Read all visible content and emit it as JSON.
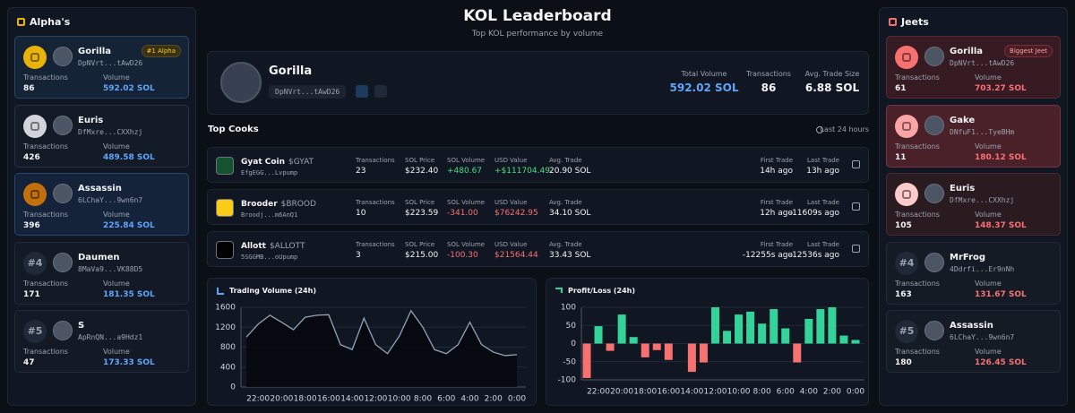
{
  "header": {
    "title": "KOL Leaderboard",
    "subtitle": "Top KOL performance by volume"
  },
  "alphas": {
    "title": "Alpha's",
    "labels": {
      "transactions": "Transactions",
      "volume": "Volume"
    },
    "entries": [
      {
        "name": "Gorilla",
        "address": "DpNVrt...tAwD26",
        "transactions": "86",
        "volume": "592.02 SOL",
        "badge": "#1 Alpha"
      },
      {
        "name": "Euris",
        "address": "DfMxre...CXXhzj",
        "transactions": "426",
        "volume": "489.58 SOL"
      },
      {
        "name": "Assassin",
        "address": "6LChaY...9wn6n7",
        "transactions": "396",
        "volume": "225.84 SOL"
      },
      {
        "rank": "#4",
        "name": "Daumen",
        "address": "8MaVa9...VK88D5",
        "transactions": "171",
        "volume": "181.35 SOL"
      },
      {
        "rank": "#5",
        "name": "S",
        "address": "ApRnQN...a9Hdz1",
        "transactions": "47",
        "volume": "173.33 SOL"
      }
    ]
  },
  "profile": {
    "name": "Gorilla",
    "address": "DpNVrt...tAwD26",
    "stats": [
      {
        "label": "Total Volume",
        "value": "592.02 SOL"
      },
      {
        "label": "Transactions",
        "value": "86"
      },
      {
        "label": "Avg. Trade Size",
        "value": "6.88 SOL"
      }
    ]
  },
  "top_cooks": {
    "title": "Top Cooks",
    "period": "Last 24 hours",
    "columns": [
      "Transactions",
      "SOL Price",
      "SOL Volume",
      "USD Value",
      "Avg. Trade",
      "First Trade",
      "Last Trade"
    ],
    "rows": [
      {
        "name": "Gyat Coin",
        "symbol": "$GYAT",
        "address": "EfgEGG...Lvpump",
        "pnl_color": "#4ade80",
        "cells": [
          "23",
          "$232.40",
          "+480.67",
          "+$111704.49",
          "20.90 SOL",
          "14h ago",
          "13h ago"
        ]
      },
      {
        "name": "Brooder",
        "symbol": "$BROOD",
        "address": "Broodj...m6AnQ1",
        "pnl_color": "#f87171",
        "cells": [
          "10",
          "$223.59",
          "-341.00",
          "$76242.95",
          "34.10 SOL",
          "12h ago",
          "-11609s ago"
        ]
      },
      {
        "name": "Allott",
        "symbol": "$ALLOTT",
        "address": "5SGGMB...oUpump",
        "pnl_color": "#f87171",
        "cells": [
          "3",
          "$215.00",
          "-100.30",
          "$21564.44",
          "33.43 SOL",
          "-12255s ago",
          "-12536s ago"
        ]
      }
    ]
  },
  "volume_chart": {
    "type": "line",
    "title": "Trading Volume (24h)",
    "color": "#94a3b8",
    "categories": [
      null,
      "22:00",
      null,
      "20:00",
      null,
      "18:00",
      null,
      "16:00",
      null,
      "14:00",
      null,
      "12:00",
      null,
      "10:00",
      null,
      "8:00",
      null,
      "6:00",
      null,
      "4:00",
      null,
      "2:00",
      null,
      "0:00"
    ],
    "values": [
      1000,
      1260,
      1440,
      1300,
      1150,
      1400,
      1440,
      1450,
      850,
      750,
      1380,
      850,
      670,
      1020,
      1530,
      1200,
      750,
      670,
      850,
      1300,
      850,
      700,
      630,
      650
    ],
    "ylim": [
      0,
      1600
    ],
    "yticks": [
      0,
      400,
      800,
      1200,
      1600
    ],
    "grid": true
  },
  "pnl_chart": {
    "type": "bar",
    "title": "Profit/Loss (24h)",
    "positive_color": "#34d399",
    "negative_color": "#f87171",
    "categories": [
      null,
      "22:00",
      null,
      "20:00",
      null,
      "18:00",
      null,
      "16:00",
      null,
      "14:00",
      null,
      "12:00",
      null,
      "10:00",
      null,
      "8:00",
      null,
      "6:00",
      null,
      "4:00",
      null,
      "2:00",
      null,
      "0:00"
    ],
    "values": [
      -95,
      48,
      -20,
      80,
      18,
      -38,
      -18,
      -45,
      0,
      -78,
      -52,
      100,
      35,
      80,
      88,
      55,
      95,
      42,
      -52,
      68,
      95,
      100,
      22,
      10
    ],
    "ylim": [
      -100,
      100
    ],
    "yticks": [
      -100,
      -50,
      0,
      50,
      100
    ],
    "grid": true
  },
  "jeets": {
    "title": "Jeets",
    "labels": {
      "transactions": "Transactions",
      "volume": "Volume"
    },
    "entries": [
      {
        "name": "Gorilla",
        "address": "DpNVrt...tAwD26",
        "transactions": "61",
        "volume": "703.27 SOL",
        "badge": "Biggest Jeet"
      },
      {
        "name": "Gake",
        "address": "DNfuF1...TyeBHm",
        "transactions": "11",
        "volume": "180.12 SOL"
      },
      {
        "name": "Euris",
        "address": "DfMxre...CXXhzj",
        "transactions": "105",
        "volume": "148.37 SOL"
      },
      {
        "rank": "#4",
        "name": "MrFrog",
        "address": "4Ddrfi...Er9nNh",
        "transactions": "163",
        "volume": "131.67 SOL"
      },
      {
        "rank": "#5",
        "name": "Assassin",
        "address": "6LChaY...9wn6n7",
        "transactions": "180",
        "volume": "126.45 SOL"
      }
    ]
  }
}
